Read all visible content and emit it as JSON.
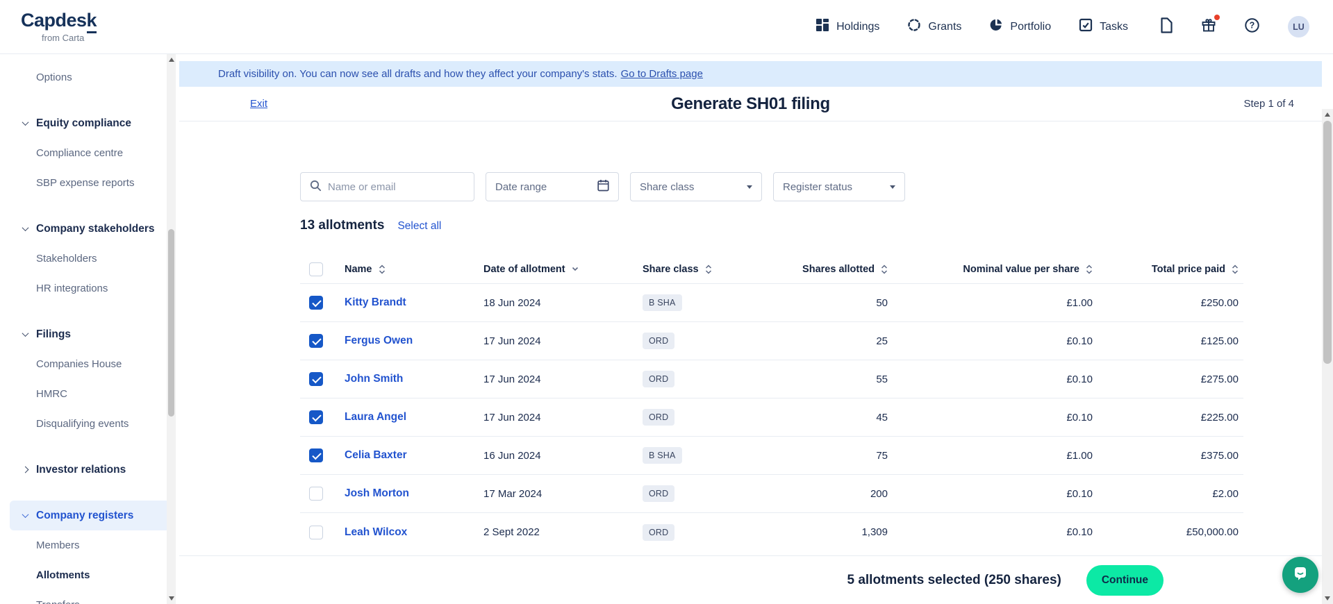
{
  "header": {
    "brand": "Capdesk",
    "brand_k": "k",
    "brand_sub": "from Carta",
    "nav": [
      {
        "label": "Holdings",
        "icon": "holdings-icon"
      },
      {
        "label": "Grants",
        "icon": "grants-icon"
      },
      {
        "label": "Portfolio",
        "icon": "portfolio-icon"
      },
      {
        "label": "Tasks",
        "icon": "tasks-icon"
      }
    ],
    "gift_has_notification": true,
    "avatar_initials": "LU"
  },
  "sidebar": {
    "items": [
      {
        "type": "sub",
        "label": "Options"
      },
      {
        "type": "section",
        "label": "Equity compliance",
        "chevron": "down"
      },
      {
        "type": "sub",
        "label": "Compliance centre"
      },
      {
        "type": "sub",
        "label": "SBP expense reports"
      },
      {
        "type": "section",
        "label": "Company stakeholders",
        "chevron": "down"
      },
      {
        "type": "sub",
        "label": "Stakeholders"
      },
      {
        "type": "sub",
        "label": "HR integrations"
      },
      {
        "type": "section",
        "label": "Filings",
        "chevron": "down"
      },
      {
        "type": "sub",
        "label": "Companies House"
      },
      {
        "type": "sub",
        "label": "HMRC"
      },
      {
        "type": "sub",
        "label": "Disqualifying events"
      },
      {
        "type": "section",
        "label": "Investor relations",
        "chevron": "right"
      },
      {
        "type": "section",
        "label": "Company registers",
        "chevron": "down",
        "active": true
      },
      {
        "type": "sub",
        "label": "Members"
      },
      {
        "type": "sub",
        "label": "Allotments",
        "current": true
      },
      {
        "type": "sub",
        "label": "Transfers"
      }
    ]
  },
  "banner": {
    "message": "Draft visibility on. You can now see all drafts and how they affect your company's stats.",
    "link_label": "Go to Drafts page"
  },
  "wizard": {
    "exit_label": "Exit",
    "title": "Generate SH01 filing",
    "step_label": "Step 1 of 4"
  },
  "filters": {
    "search_placeholder": "Name or email",
    "date_range_label": "Date range",
    "share_class_label": "Share class",
    "register_status_label": "Register status"
  },
  "allotments": {
    "count_label": "13 allotments",
    "select_all_label": "Select all",
    "columns": [
      "Name",
      "Date of allotment",
      "Share class",
      "Shares allotted",
      "Nominal value per share",
      "Total price paid"
    ],
    "rows": [
      {
        "checked": true,
        "name": "Kitty Brandt",
        "date": "18 Jun 2024",
        "share_class": "B SHA",
        "shares_allotted": "50",
        "nominal_value": "£1.00",
        "total_price": "£250.00"
      },
      {
        "checked": true,
        "name": "Fergus Owen",
        "date": "17 Jun 2024",
        "share_class": "ORD",
        "shares_allotted": "25",
        "nominal_value": "£0.10",
        "total_price": "£125.00"
      },
      {
        "checked": true,
        "name": "John Smith",
        "date": "17 Jun 2024",
        "share_class": "ORD",
        "shares_allotted": "55",
        "nominal_value": "£0.10",
        "total_price": "£275.00"
      },
      {
        "checked": true,
        "name": "Laura Angel",
        "date": "17 Jun 2024",
        "share_class": "ORD",
        "shares_allotted": "45",
        "nominal_value": "£0.10",
        "total_price": "£225.00"
      },
      {
        "checked": true,
        "name": "Celia Baxter",
        "date": "16 Jun 2024",
        "share_class": "B SHA",
        "shares_allotted": "75",
        "nominal_value": "£1.00",
        "total_price": "£375.00"
      },
      {
        "checked": false,
        "name": "Josh Morton",
        "date": "17 Mar 2024",
        "share_class": "ORD",
        "shares_allotted": "200",
        "nominal_value": "£0.10",
        "total_price": "£2.00"
      },
      {
        "checked": false,
        "name": "Leah Wilcox",
        "date": "2 Sept 2022",
        "share_class": "ORD",
        "shares_allotted": "1,309",
        "nominal_value": "£0.10",
        "total_price": "£50,000.00"
      }
    ]
  },
  "footer": {
    "selection_label": "5 allotments selected (250 shares)",
    "continue_label": "Continue"
  },
  "colors": {
    "brand_navy": "#16325a",
    "text_navy": "#14233f",
    "link_blue": "#2253cf",
    "checkbox_blue": "#1658c7",
    "banner_bg": "#dcecfd",
    "banner_text": "#2b50ae",
    "badge_bg": "#e9edf4",
    "continue_green": "#0ce9a5",
    "chat_teal": "#14a17e",
    "active_item_bg": "#e9f1fc",
    "notification_red": "#e8402a"
  }
}
